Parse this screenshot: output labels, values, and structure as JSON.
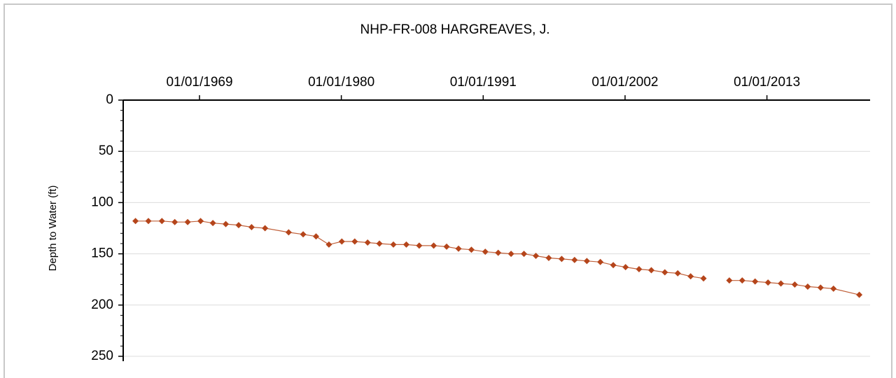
{
  "chart_data": {
    "type": "line",
    "title": "NHP-FR-008 HARGREAVES, J.",
    "y_label": "Depth to Water (ft)",
    "x": [
      "1964-01-15",
      "1965-01-15",
      "1966-02-01",
      "1967-02-01",
      "1968-02-01",
      "1969-02-01",
      "1970-01-15",
      "1971-01-15",
      "1972-01-15",
      "1973-01-15",
      "1974-02-01",
      "1975-12-01",
      "1977-01-15",
      "1978-01-15",
      "1979-01-15",
      "1980-01-15",
      "1981-01-15",
      "1982-01-15",
      "1982-12-15",
      "1984-01-15",
      "1985-01-15",
      "1986-01-15",
      "1987-03-01",
      "1988-03-01",
      "1989-02-01",
      "1990-02-01",
      "1991-03-01",
      "1992-03-01",
      "1993-03-01",
      "1994-03-01",
      "1995-02-01",
      "1996-02-01",
      "1997-02-01",
      "1998-02-01",
      "1999-01-15",
      "2000-02-01",
      "2001-02-01",
      "2002-01-15",
      "2003-02-01",
      "2004-01-15",
      "2005-02-01",
      "2006-02-01",
      "2007-02-01",
      "2008-02-01",
      "2009-02-01",
      "2010-02-01",
      "2011-02-01",
      "2012-02-01",
      "2013-02-01",
      "2014-02-01",
      "2015-03-01",
      "2016-03-01",
      "2017-03-01",
      "2018-03-01",
      "2020-03-01"
    ],
    "values": [
      118,
      118,
      118,
      119,
      119,
      118,
      120,
      121,
      122,
      124,
      125,
      129,
      131,
      133,
      141,
      138,
      138,
      139,
      140,
      141,
      141,
      142,
      142,
      143,
      145,
      146,
      148,
      149,
      150,
      150,
      152,
      154,
      155,
      156,
      157,
      158,
      161,
      163,
      165,
      166,
      168,
      169,
      172,
      174,
      null,
      176,
      176,
      177,
      178,
      179,
      180,
      182,
      183,
      184,
      190
    ],
    "color": "#b5451b",
    "line_color": "#c0603a",
    "xlim": [
      "1963-02-01",
      "2021-01-01"
    ],
    "xticks": [
      {
        "value": "1969-01-01",
        "label": "01/01/1969"
      },
      {
        "value": "1980-01-01",
        "label": "01/01/1980"
      },
      {
        "value": "1991-01-01",
        "label": "01/01/1991"
      },
      {
        "value": "2002-01-01",
        "label": "01/01/2002"
      },
      {
        "value": "2013-01-01",
        "label": "01/01/2013"
      }
    ],
    "x_axis_position": "top",
    "ylim": [
      0,
      250
    ],
    "yticks": [
      0,
      50,
      100,
      150,
      200,
      250
    ],
    "y_minor_ticks": [
      10,
      20,
      30,
      40,
      60,
      70,
      80,
      90,
      110,
      120,
      130,
      140,
      160,
      170,
      180,
      190,
      210,
      220,
      230,
      240
    ],
    "y_inverted": true,
    "grid": true
  }
}
